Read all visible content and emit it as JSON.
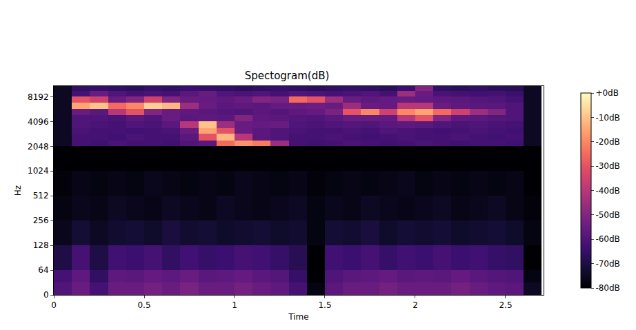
{
  "chart_data": {
    "type": "heatmap",
    "title": "Spectogram(dB)",
    "x_label": "Time",
    "y_label": "Hz",
    "log": "y",
    "xlim": [
      0,
      2.71
    ],
    "xticks": [
      0,
      0.5,
      1,
      1.5,
      2,
      2.5
    ],
    "ylim": [
      0,
      11025
    ],
    "yticks": [
      0,
      64,
      128,
      256,
      512,
      1024,
      2048,
      4096,
      8192
    ],
    "x_edges": [
      0,
      0.1,
      0.2,
      0.3,
      0.4,
      0.5,
      0.6,
      0.7,
      0.8,
      0.9,
      1.0,
      1.1,
      1.2,
      1.3,
      1.4,
      1.5,
      1.6,
      1.7,
      1.8,
      1.9,
      2.0,
      2.1,
      2.2,
      2.3,
      2.4,
      2.5,
      2.6,
      2.7
    ],
    "y_edges": [
      0,
      32,
      64,
      128,
      256,
      512,
      1024,
      2048,
      2400,
      2900,
      3400,
      4100,
      4900,
      5800,
      6900,
      8200,
      9700,
      11025
    ],
    "cells": [
      [
        -60,
        -55,
        -62,
        -55,
        -55,
        -53,
        -55,
        -52,
        -55,
        -55,
        -53,
        -55,
        -57,
        -62,
        -78,
        -58,
        -55,
        -55,
        -53,
        -55,
        -55,
        -55,
        -53,
        -55,
        -57,
        -58,
        -75
      ],
      [
        -62,
        -57,
        -66,
        -57,
        -58,
        -56,
        -57,
        -55,
        -58,
        -57,
        -56,
        -58,
        -59,
        -65,
        -80,
        -60,
        -58,
        -57,
        -56,
        -58,
        -57,
        -58,
        -56,
        -58,
        -59,
        -60,
        -78
      ],
      [
        -70,
        -62,
        -70,
        -63,
        -64,
        -62,
        -66,
        -63,
        -65,
        -64,
        -62,
        -63,
        -65,
        -68,
        -80,
        -63,
        -64,
        -62,
        -65,
        -63,
        -64,
        -62,
        -64,
        -63,
        -65,
        -66,
        -80
      ],
      [
        -76,
        -72,
        -75,
        -73,
        -72,
        -74,
        -71,
        -73,
        -72,
        -74,
        -73,
        -72,
        -74,
        -73,
        -78,
        -72,
        -73,
        -71,
        -74,
        -72,
        -73,
        -72,
        -74,
        -73,
        -72,
        -74,
        -78
      ],
      [
        -78,
        -76,
        -77,
        -75,
        -76,
        -77,
        -75,
        -76,
        -77,
        -75,
        -76,
        -77,
        -76,
        -75,
        -78,
        -76,
        -77,
        -75,
        -76,
        -77,
        -76,
        -75,
        -77,
        -76,
        -75,
        -77,
        -79
      ],
      [
        -79,
        -77,
        -78,
        -77,
        -78,
        -76,
        -77,
        -78,
        -77,
        -78,
        -76,
        -77,
        -78,
        -77,
        -79,
        -78,
        -77,
        -78,
        -77,
        -76,
        -78,
        -77,
        -78,
        -77,
        -78,
        -77,
        -80
      ],
      [
        -80,
        -80,
        -80,
        -80,
        -80,
        -80,
        -80,
        -80,
        -80,
        -80,
        -80,
        -80,
        -80,
        -80,
        -80,
        -80,
        -80,
        -80,
        -80,
        -80,
        -80,
        -80,
        -80,
        -80,
        -80,
        -80,
        -80
      ],
      [
        -75,
        -62,
        -63,
        -61,
        -62,
        -62,
        -63,
        -60,
        -58,
        -25,
        -18,
        -22,
        -45,
        -62,
        -63,
        -62,
        -61,
        -62,
        -63,
        -62,
        -61,
        -62,
        -63,
        -62,
        -62,
        -63,
        -75
      ],
      [
        -75,
        -62,
        -62,
        -63,
        -61,
        -62,
        -62,
        -58,
        -30,
        -12,
        -40,
        -58,
        -60,
        -62,
        -62,
        -61,
        -62,
        -63,
        -62,
        -61,
        -62,
        -62,
        -61,
        -62,
        -63,
        -62,
        -75
      ],
      [
        -75,
        -61,
        -62,
        -62,
        -63,
        -62,
        -61,
        -55,
        -15,
        -30,
        -55,
        -58,
        -60,
        -61,
        -62,
        -62,
        -61,
        -62,
        -60,
        -61,
        -62,
        -63,
        -62,
        -61,
        -62,
        -63,
        -75
      ],
      [
        -75,
        -60,
        -61,
        -62,
        -60,
        -61,
        -58,
        -40,
        -10,
        -45,
        -55,
        -56,
        -55,
        -60,
        -61,
        -60,
        -59,
        -60,
        -58,
        -57,
        -58,
        -60,
        -61,
        -60,
        -61,
        -62,
        -75
      ],
      [
        -75,
        -60,
        -60,
        -61,
        -58,
        -60,
        -55,
        -58,
        -57,
        -58,
        -50,
        -57,
        -58,
        -59,
        -60,
        -58,
        -55,
        -55,
        -56,
        -40,
        -30,
        -50,
        -57,
        -58,
        -59,
        -60,
        -75
      ],
      [
        -75,
        -55,
        -58,
        -40,
        -30,
        -50,
        -55,
        -57,
        -58,
        -59,
        -60,
        -58,
        -59,
        -57,
        -56,
        -52,
        -30,
        -20,
        -35,
        -20,
        -15,
        -25,
        -35,
        -45,
        -50,
        -60,
        -75
      ],
      [
        -75,
        -15,
        -10,
        -25,
        -20,
        -8,
        -12,
        -45,
        -55,
        -58,
        -57,
        -58,
        -56,
        -55,
        -54,
        -55,
        -45,
        -55,
        -56,
        -40,
        -40,
        -55,
        -57,
        -58,
        -58,
        -60,
        -75
      ],
      [
        -75,
        -30,
        -35,
        -55,
        -50,
        -35,
        -50,
        -55,
        -56,
        -57,
        -55,
        -50,
        -52,
        -25,
        -30,
        -45,
        -55,
        -57,
        -56,
        -55,
        -56,
        -57,
        -58,
        -59,
        -60,
        -62,
        -75
      ],
      [
        -75,
        -62,
        -55,
        -60,
        -62,
        -61,
        -62,
        -58,
        -55,
        -60,
        -61,
        -60,
        -62,
        -60,
        -61,
        -62,
        -61,
        -60,
        -62,
        -45,
        -55,
        -61,
        -62,
        -63,
        -62,
        -64,
        -75
      ],
      [
        -75,
        -66,
        -65,
        -66,
        -67,
        -65,
        -66,
        -64,
        -65,
        -66,
        -67,
        -66,
        -65,
        -66,
        -67,
        -66,
        -65,
        -66,
        -67,
        -64,
        -50,
        -66,
        -67,
        -66,
        -67,
        -68,
        -75
      ]
    ],
    "zlim": [
      -80,
      0
    ],
    "zticks": [
      {
        "value": 0,
        "label": "+0dB"
      },
      {
        "value": -10,
        "label": "-10dB"
      },
      {
        "value": -20,
        "label": "-20dB"
      },
      {
        "value": -30,
        "label": "-30dB"
      },
      {
        "value": -40,
        "label": "-40dB"
      },
      {
        "value": -50,
        "label": "-50dB"
      },
      {
        "value": -60,
        "label": "-60dB"
      },
      {
        "value": -70,
        "label": "-70dB"
      },
      {
        "value": -80,
        "label": "-80dB"
      }
    ]
  }
}
